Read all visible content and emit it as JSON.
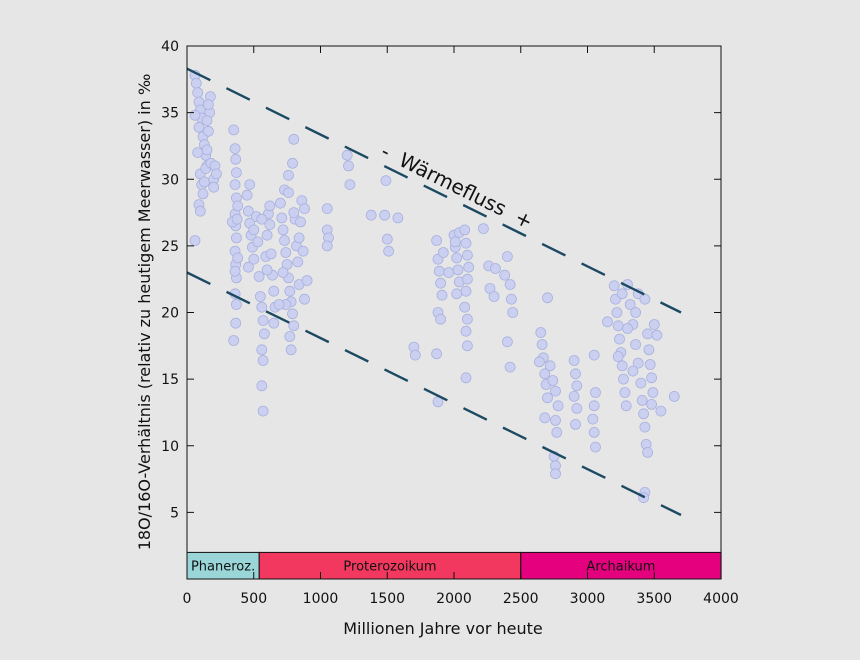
{
  "chart_data": {
    "type": "scatter",
    "xlabel": "Millionen Jahre vor heute",
    "ylabel": "18O/16O-Verhältnis (relativ zu heutigem Meerwasser) in ‰",
    "xlim": [
      0,
      4000
    ],
    "ylim": [
      0,
      40
    ],
    "xticks": [
      0,
      500,
      1000,
      1500,
      2000,
      2500,
      3000,
      3500,
      4000
    ],
    "yticks": [
      5,
      10,
      15,
      20,
      25,
      30,
      35,
      40
    ],
    "grid": false,
    "colors": {
      "points": "#c9cff0",
      "points_stroke": "#a9b1de",
      "trend_lines": "#1d4a63"
    },
    "annotation": {
      "text": "-  Wärmefluss  +",
      "x": 2000,
      "y": 29
    },
    "trend_lines": [
      {
        "name": "upper",
        "points": [
          [
            0,
            38.3
          ],
          [
            3700,
            20.0
          ]
        ]
      },
      {
        "name": "lower",
        "points": [
          [
            0,
            23.0
          ],
          [
            3700,
            4.8
          ]
        ]
      }
    ],
    "eras": [
      {
        "label": "Phaneroz.",
        "start": 0,
        "end": 541,
        "color": "#9ad6d8"
      },
      {
        "label": "Proterozoikum",
        "start": 541,
        "end": 2500,
        "color": "#f2385f"
      },
      {
        "label": "Archaikum",
        "start": 2500,
        "end": 4000,
        "color": "#e5007e"
      }
    ],
    "series": [
      {
        "points": [
          [
            60,
            37.8
          ],
          [
            70,
            37.2
          ],
          [
            80,
            36.5
          ],
          [
            90,
            35.8
          ],
          [
            100,
            35.2
          ],
          [
            110,
            34.6
          ],
          [
            60,
            34.8
          ],
          [
            90,
            33.9
          ],
          [
            120,
            33.2
          ],
          [
            130,
            32.6
          ],
          [
            140,
            31.8
          ],
          [
            150,
            31.0
          ],
          [
            100,
            30.4
          ],
          [
            110,
            29.6
          ],
          [
            120,
            28.9
          ],
          [
            90,
            28.1
          ],
          [
            100,
            27.6
          ],
          [
            130,
            29.8
          ],
          [
            140,
            30.8
          ],
          [
            150,
            32.2
          ],
          [
            160,
            33.6
          ],
          [
            170,
            35.0
          ],
          [
            175,
            36.2
          ],
          [
            60,
            25.4
          ],
          [
            180,
            31.2
          ],
          [
            200,
            30.0
          ],
          [
            210,
            31.0
          ],
          [
            220,
            30.4
          ],
          [
            150,
            34.4
          ],
          [
            160,
            35.6
          ],
          [
            80,
            32.0
          ],
          [
            200,
            29.4
          ],
          [
            350,
            33.7
          ],
          [
            360,
            32.3
          ],
          [
            365,
            31.5
          ],
          [
            370,
            30.5
          ],
          [
            360,
            29.6
          ],
          [
            370,
            28.6
          ],
          [
            360,
            27.4
          ],
          [
            365,
            26.5
          ],
          [
            370,
            25.6
          ],
          [
            360,
            24.6
          ],
          [
            365,
            23.6
          ],
          [
            370,
            22.6
          ],
          [
            360,
            21.4
          ],
          [
            370,
            20.6
          ],
          [
            365,
            19.2
          ],
          [
            350,
            17.9
          ],
          [
            340,
            26.8
          ],
          [
            380,
            28.0
          ],
          [
            380,
            24.1
          ],
          [
            360,
            23.1
          ],
          [
            375,
            27.0
          ],
          [
            450,
            28.8
          ],
          [
            460,
            27.6
          ],
          [
            470,
            26.7
          ],
          [
            480,
            25.8
          ],
          [
            490,
            24.9
          ],
          [
            500,
            24.0
          ],
          [
            460,
            23.4
          ],
          [
            470,
            29.6
          ],
          [
            500,
            26.2
          ],
          [
            520,
            27.2
          ],
          [
            530,
            25.3
          ],
          [
            540,
            22.7
          ],
          [
            550,
            21.2
          ],
          [
            560,
            20.4
          ],
          [
            570,
            19.4
          ],
          [
            580,
            18.4
          ],
          [
            560,
            17.2
          ],
          [
            570,
            16.4
          ],
          [
            560,
            14.5
          ],
          [
            570,
            12.6
          ],
          [
            590,
            24.2
          ],
          [
            600,
            25.8
          ],
          [
            610,
            27.4
          ],
          [
            620,
            26.6
          ],
          [
            630,
            24.4
          ],
          [
            640,
            22.8
          ],
          [
            650,
            21.6
          ],
          [
            600,
            23.2
          ],
          [
            560,
            27.0
          ],
          [
            620,
            28.0
          ],
          [
            650,
            19.2
          ],
          [
            660,
            20.4
          ],
          [
            700,
            28.2
          ],
          [
            710,
            27.1
          ],
          [
            720,
            26.2
          ],
          [
            730,
            25.4
          ],
          [
            740,
            24.5
          ],
          [
            750,
            23.6
          ],
          [
            760,
            22.6
          ],
          [
            770,
            21.6
          ],
          [
            780,
            20.8
          ],
          [
            790,
            19.9
          ],
          [
            800,
            19.0
          ],
          [
            770,
            18.2
          ],
          [
            780,
            17.2
          ],
          [
            730,
            29.2
          ],
          [
            760,
            30.3
          ],
          [
            790,
            31.2
          ],
          [
            800,
            33.0
          ],
          [
            810,
            27.0
          ],
          [
            820,
            25.0
          ],
          [
            830,
            23.8
          ],
          [
            840,
            22.1
          ],
          [
            850,
            26.8
          ],
          [
            860,
            28.4
          ],
          [
            870,
            24.6
          ],
          [
            880,
            21.0
          ],
          [
            900,
            22.4
          ],
          [
            760,
            29.0
          ],
          [
            800,
            27.5
          ],
          [
            840,
            25.6
          ],
          [
            880,
            27.8
          ],
          [
            720,
            23.0
          ],
          [
            740,
            20.6
          ],
          [
            690,
            20.6
          ],
          [
            1050,
            27.8
          ],
          [
            1050,
            26.2
          ],
          [
            1060,
            25.6
          ],
          [
            1050,
            25.0
          ],
          [
            1200,
            31.8
          ],
          [
            1210,
            31.0
          ],
          [
            1220,
            29.6
          ],
          [
            1380,
            27.3
          ],
          [
            1480,
            27.3
          ],
          [
            1580,
            27.1
          ],
          [
            1490,
            29.9
          ],
          [
            1500,
            25.5
          ],
          [
            1510,
            24.6
          ],
          [
            1700,
            17.4
          ],
          [
            1710,
            16.8
          ],
          [
            1870,
            25.4
          ],
          [
            1880,
            24.0
          ],
          [
            1890,
            23.1
          ],
          [
            1900,
            22.2
          ],
          [
            1910,
            21.3
          ],
          [
            1880,
            20.0
          ],
          [
            1900,
            19.5
          ],
          [
            1870,
            16.9
          ],
          [
            1880,
            13.3
          ],
          [
            1920,
            24.5
          ],
          [
            1960,
            23.0
          ],
          [
            2000,
            25.8
          ],
          [
            2010,
            24.9
          ],
          [
            2020,
            24.1
          ],
          [
            2030,
            23.2
          ],
          [
            2040,
            22.3
          ],
          [
            2020,
            21.4
          ],
          [
            2010,
            25.3
          ],
          [
            2040,
            26.0
          ],
          [
            2080,
            26.2
          ],
          [
            2090,
            25.2
          ],
          [
            2100,
            24.3
          ],
          [
            2110,
            23.4
          ],
          [
            2100,
            22.5
          ],
          [
            2090,
            21.6
          ],
          [
            2080,
            20.4
          ],
          [
            2100,
            19.5
          ],
          [
            2090,
            18.6
          ],
          [
            2100,
            17.5
          ],
          [
            2090,
            15.1
          ],
          [
            2220,
            26.3
          ],
          [
            2260,
            23.5
          ],
          [
            2270,
            21.8
          ],
          [
            2300,
            21.2
          ],
          [
            2310,
            23.3
          ],
          [
            2380,
            22.8
          ],
          [
            2400,
            24.2
          ],
          [
            2420,
            22.1
          ],
          [
            2430,
            21.0
          ],
          [
            2440,
            20.0
          ],
          [
            2400,
            17.8
          ],
          [
            2420,
            15.9
          ],
          [
            2650,
            18.5
          ],
          [
            2660,
            17.6
          ],
          [
            2670,
            16.6
          ],
          [
            2680,
            15.4
          ],
          [
            2690,
            14.6
          ],
          [
            2700,
            13.6
          ],
          [
            2680,
            12.1
          ],
          [
            2720,
            16.0
          ],
          [
            2740,
            14.9
          ],
          [
            2760,
            14.1
          ],
          [
            2780,
            13.0
          ],
          [
            2760,
            11.9
          ],
          [
            2770,
            11.0
          ],
          [
            2750,
            9.2
          ],
          [
            2760,
            8.5
          ],
          [
            2760,
            7.9
          ],
          [
            2700,
            21.1
          ],
          [
            2640,
            16.3
          ],
          [
            2900,
            16.4
          ],
          [
            2910,
            15.4
          ],
          [
            2920,
            14.5
          ],
          [
            2900,
            13.7
          ],
          [
            2920,
            12.8
          ],
          [
            2910,
            11.6
          ],
          [
            3050,
            16.8
          ],
          [
            3060,
            14.0
          ],
          [
            3050,
            13.0
          ],
          [
            3040,
            12.0
          ],
          [
            3050,
            11.0
          ],
          [
            3060,
            9.9
          ],
          [
            3150,
            19.3
          ],
          [
            3200,
            22.0
          ],
          [
            3210,
            21.0
          ],
          [
            3220,
            20.0
          ],
          [
            3230,
            19.0
          ],
          [
            3240,
            18.0
          ],
          [
            3250,
            17.0
          ],
          [
            3260,
            16.0
          ],
          [
            3270,
            15.0
          ],
          [
            3280,
            14.0
          ],
          [
            3290,
            13.0
          ],
          [
            3300,
            22.1
          ],
          [
            3320,
            20.6
          ],
          [
            3340,
            19.1
          ],
          [
            3360,
            17.6
          ],
          [
            3380,
            16.2
          ],
          [
            3400,
            14.7
          ],
          [
            3410,
            13.4
          ],
          [
            3420,
            12.4
          ],
          [
            3430,
            11.4
          ],
          [
            3440,
            10.1
          ],
          [
            3450,
            9.5
          ],
          [
            3430,
            6.5
          ],
          [
            3420,
            6.1
          ],
          [
            3450,
            18.4
          ],
          [
            3460,
            17.2
          ],
          [
            3470,
            16.1
          ],
          [
            3480,
            15.1
          ],
          [
            3490,
            14.0
          ],
          [
            3480,
            13.1
          ],
          [
            3500,
            19.1
          ],
          [
            3520,
            18.3
          ],
          [
            3380,
            21.4
          ],
          [
            3430,
            21.0
          ],
          [
            3550,
            12.6
          ],
          [
            3650,
            13.7
          ],
          [
            3300,
            18.8
          ],
          [
            3340,
            15.6
          ],
          [
            3260,
            21.4
          ],
          [
            3230,
            16.7
          ],
          [
            3360,
            20.0
          ]
        ]
      }
    ]
  }
}
